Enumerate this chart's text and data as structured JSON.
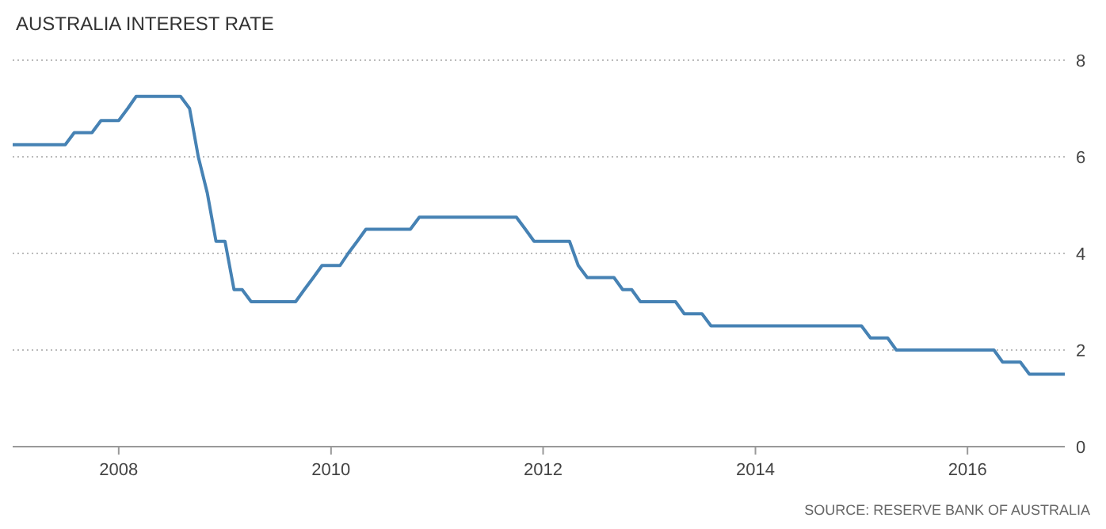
{
  "chart_data": {
    "type": "line",
    "title": "AUSTRALIA INTEREST RATE",
    "annotations": [
      "SOURCE: RESERVE BANK OF AUSTRALIA"
    ],
    "x": [
      "2007-01",
      "2007-07",
      "2007-08",
      "2007-10",
      "2007-11",
      "2008-01",
      "2008-02",
      "2008-03",
      "2008-08",
      "2008-09",
      "2008-10",
      "2008-11",
      "2008-12",
      "2009-01",
      "2009-02",
      "2009-03",
      "2009-04",
      "2009-09",
      "2009-10",
      "2009-11",
      "2009-12",
      "2010-02",
      "2010-03",
      "2010-04",
      "2010-05",
      "2010-10",
      "2010-11",
      "2011-10",
      "2011-11",
      "2011-12",
      "2012-04",
      "2012-05",
      "2012-06",
      "2012-09",
      "2012-10",
      "2012-11",
      "2012-12",
      "2013-04",
      "2013-05",
      "2013-07",
      "2013-08",
      "2015-01",
      "2015-02",
      "2015-04",
      "2015-05",
      "2016-04",
      "2016-05",
      "2016-07",
      "2016-08",
      "2016-12"
    ],
    "series": [
      {
        "color": "#4682b4",
        "values": [
          6.25,
          6.25,
          6.5,
          6.5,
          6.75,
          6.75,
          7.0,
          7.25,
          7.25,
          7.0,
          6.0,
          5.25,
          4.25,
          4.25,
          3.25,
          3.25,
          3.0,
          3.0,
          3.25,
          3.5,
          3.75,
          3.75,
          4.0,
          4.25,
          4.5,
          4.5,
          4.75,
          4.75,
          4.5,
          4.25,
          4.25,
          3.75,
          3.5,
          3.5,
          3.25,
          3.25,
          3.0,
          3.0,
          2.75,
          2.75,
          2.5,
          2.5,
          2.25,
          2.25,
          2.0,
          2.0,
          1.75,
          1.75,
          1.5,
          1.5
        ]
      }
    ],
    "xlim": [
      "2007-01",
      "2016-12"
    ],
    "xticks": [
      "2008",
      "2010",
      "2012",
      "2014",
      "2016"
    ],
    "ylim": [
      0,
      8
    ],
    "yticks": [
      0,
      2,
      4,
      6,
      8
    ],
    "grid": "y"
  }
}
